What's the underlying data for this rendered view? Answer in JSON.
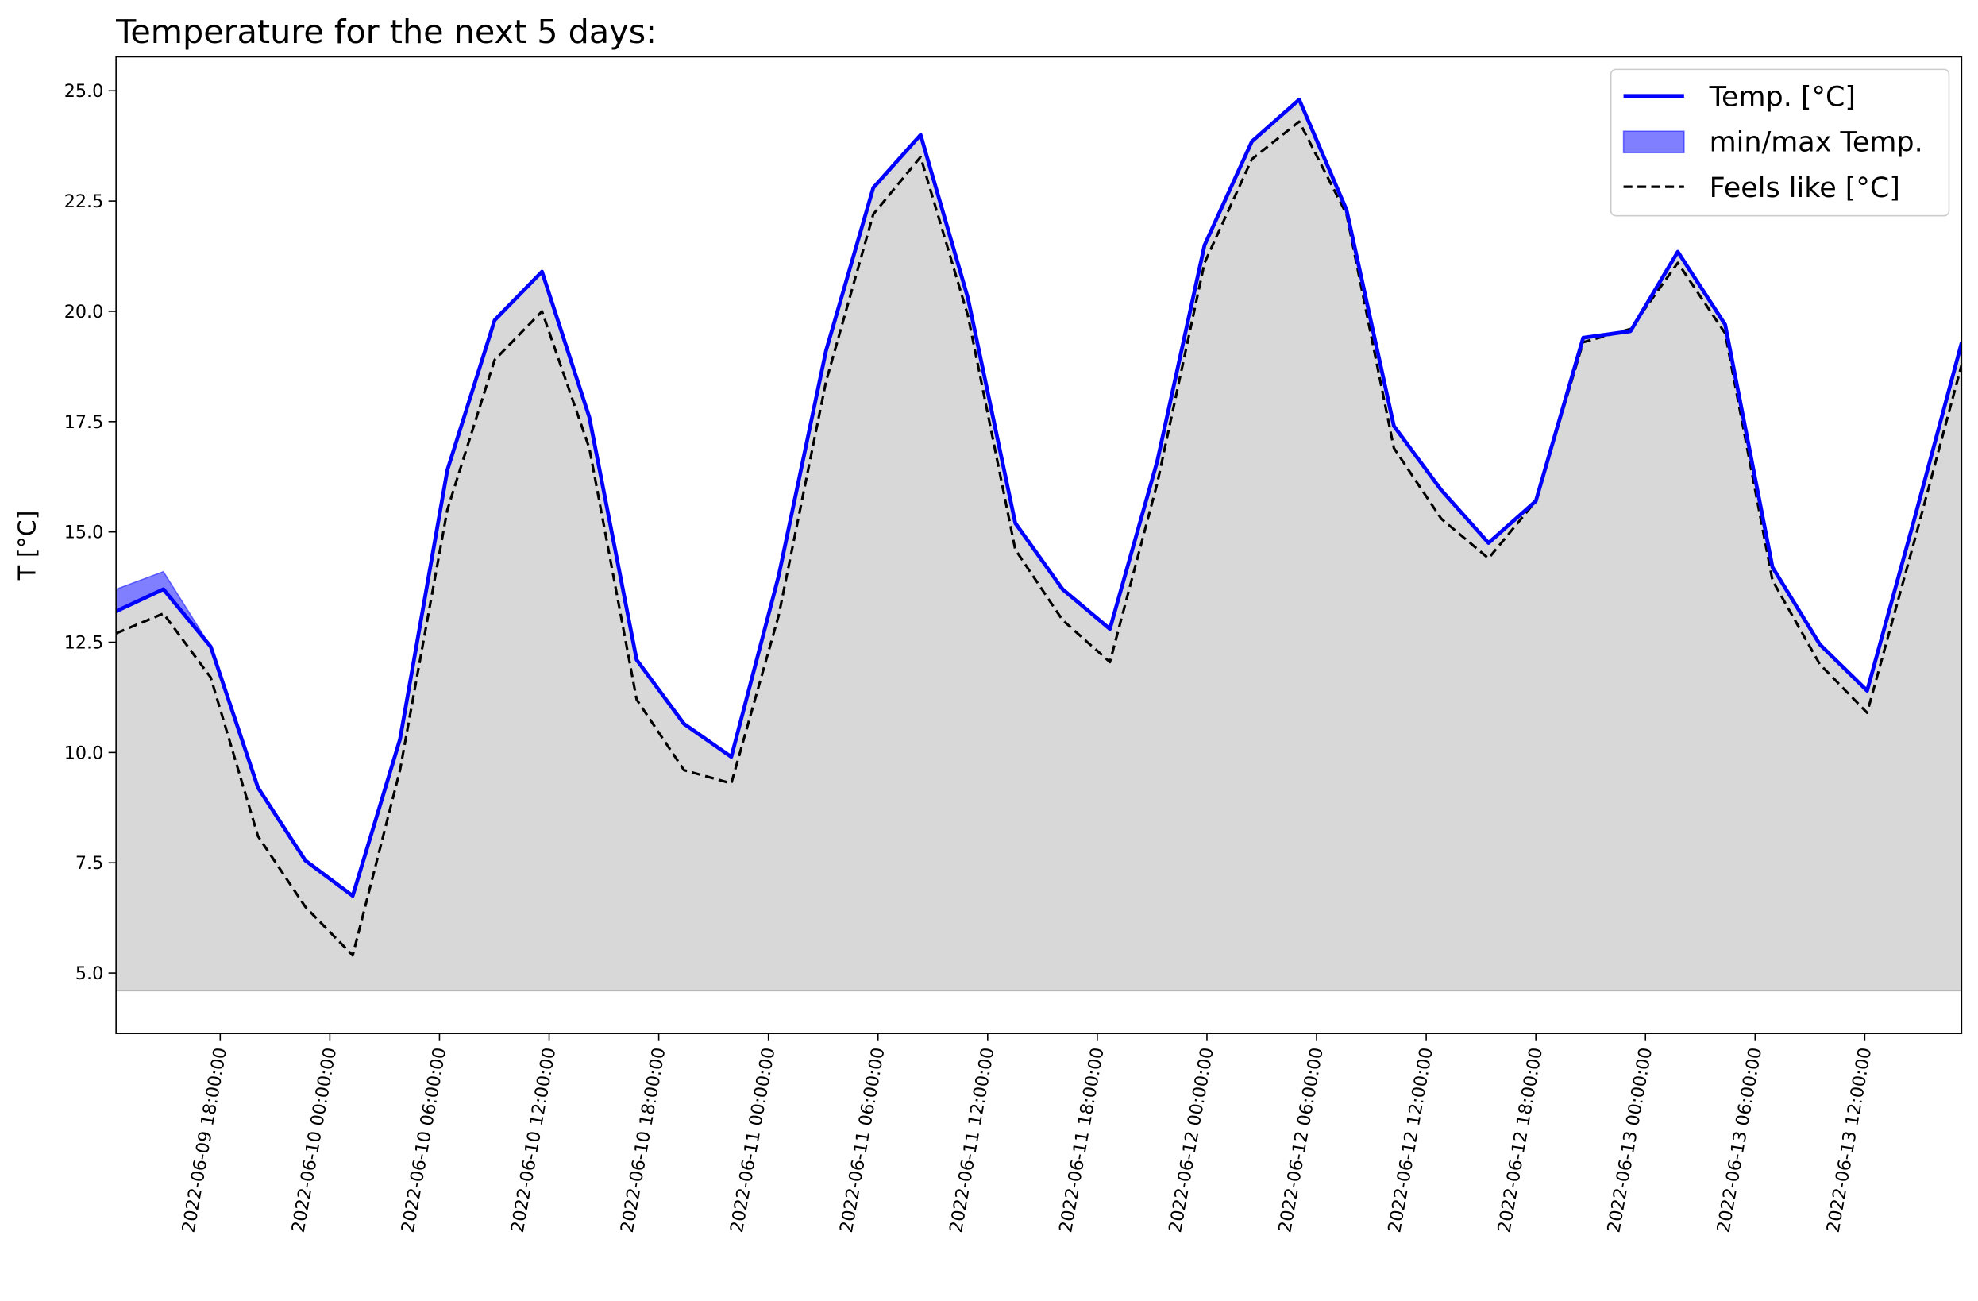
{
  "chart_data": {
    "type": "line",
    "title": "Temperature for the next 5 days:",
    "y_label": "T [°C]",
    "x": [
      12.3,
      14.89,
      17.48,
      20.07,
      22.66,
      25.25,
      27.84,
      30.43,
      33.02,
      35.61,
      38.2,
      40.79,
      43.38,
      45.97,
      48.56,
      51.15,
      53.74,
      56.33,
      58.92,
      61.51,
      64.1,
      66.69,
      69.28,
      71.87,
      74.46,
      77.05,
      79.64,
      82.23,
      84.82,
      87.41,
      90.0,
      92.59,
      95.18,
      97.77,
      100.36,
      102.95,
      105.54,
      108.13,
      110.72,
      113.31
    ],
    "series": [
      {
        "name": "Temp. [°C]",
        "color": "#0000ff",
        "dashed": false,
        "values": [
          13.2,
          13.7,
          12.4,
          9.2,
          7.55,
          6.75,
          10.3,
          16.4,
          19.8,
          20.9,
          17.6,
          12.1,
          10.65,
          9.9,
          14.0,
          19.1,
          22.8,
          24.0,
          20.3,
          15.2,
          13.7,
          12.8,
          16.6,
          21.5,
          23.85,
          24.8,
          22.3,
          17.4,
          15.95,
          14.75,
          15.7,
          19.4,
          19.55,
          21.35,
          19.7,
          14.2,
          12.45,
          11.4,
          15.3,
          19.3
        ]
      },
      {
        "name": "Feels like [°C]",
        "color": "#000000",
        "dashed": true,
        "values": [
          12.7,
          13.15,
          11.7,
          8.1,
          6.5,
          5.4,
          9.6,
          15.5,
          18.9,
          20.0,
          16.9,
          11.2,
          9.6,
          9.3,
          13.1,
          18.4,
          22.2,
          23.5,
          19.9,
          14.6,
          13.0,
          12.05,
          16.1,
          21.1,
          23.45,
          24.3,
          22.2,
          16.9,
          15.3,
          14.4,
          15.7,
          19.3,
          19.6,
          21.1,
          19.5,
          13.9,
          12.0,
          10.9,
          14.8,
          18.8
        ]
      }
    ],
    "band": {
      "name": "min/max Temp.",
      "color": "#0000ff",
      "opacity": 0.5,
      "max": [
        13.7,
        14.1,
        12.4,
        9.2,
        7.55,
        6.75,
        10.3,
        16.4,
        19.8,
        20.9,
        17.6,
        12.1,
        10.65,
        9.9,
        14.0,
        19.1,
        22.8,
        24.0,
        20.3,
        15.2,
        13.7,
        12.8,
        16.6,
        21.5,
        23.85,
        24.8,
        22.3,
        17.4,
        15.95,
        14.75,
        15.7,
        19.4,
        19.55,
        21.35,
        19.7,
        14.2,
        12.45,
        11.4,
        15.3,
        19.3
      ],
      "min": [
        13.2,
        13.7,
        12.4,
        9.2,
        7.55,
        6.75,
        10.3,
        16.4,
        19.8,
        20.9,
        17.6,
        12.1,
        10.65,
        9.9,
        14.0,
        19.1,
        22.8,
        24.0,
        20.3,
        15.2,
        13.7,
        12.8,
        16.6,
        21.5,
        23.85,
        24.8,
        22.3,
        17.4,
        15.95,
        14.75,
        15.7,
        19.4,
        19.55,
        21.35,
        19.7,
        14.2,
        12.45,
        11.4,
        15.3,
        19.3
      ]
    },
    "fill": {
      "color": "#d8d8d8",
      "base": 4.6
    },
    "xlim": [
      12.3,
      113.3
    ],
    "ylim": [
      3.63,
      25.77
    ],
    "xticks": [
      {
        "value": 18,
        "label": "2022-06-09 18:00:00"
      },
      {
        "value": 24,
        "label": "2022-06-10 00:00:00"
      },
      {
        "value": 30,
        "label": "2022-06-10 06:00:00"
      },
      {
        "value": 36,
        "label": "2022-06-10 12:00:00"
      },
      {
        "value": 42,
        "label": "2022-06-10 18:00:00"
      },
      {
        "value": 48,
        "label": "2022-06-11 00:00:00"
      },
      {
        "value": 54,
        "label": "2022-06-11 06:00:00"
      },
      {
        "value": 60,
        "label": "2022-06-11 12:00:00"
      },
      {
        "value": 66,
        "label": "2022-06-11 18:00:00"
      },
      {
        "value": 72,
        "label": "2022-06-12 00:00:00"
      },
      {
        "value": 78,
        "label": "2022-06-12 06:00:00"
      },
      {
        "value": 84,
        "label": "2022-06-12 12:00:00"
      },
      {
        "value": 90,
        "label": "2022-06-12 18:00:00"
      },
      {
        "value": 96,
        "label": "2022-06-13 00:00:00"
      },
      {
        "value": 102,
        "label": "2022-06-13 06:00:00"
      },
      {
        "value": 108,
        "label": "2022-06-13 12:00:00"
      }
    ],
    "yticks": [
      {
        "value": 5,
        "label": "5.0"
      },
      7.5,
      {
        "value": 10,
        "label": "10.0"
      },
      12.5,
      {
        "value": 15,
        "label": "15.0"
      },
      17.5,
      {
        "value": 20,
        "label": "20.0"
      },
      22.5,
      {
        "value": 25,
        "label": "25.0"
      }
    ],
    "grid": false,
    "legend": "upper right"
  }
}
